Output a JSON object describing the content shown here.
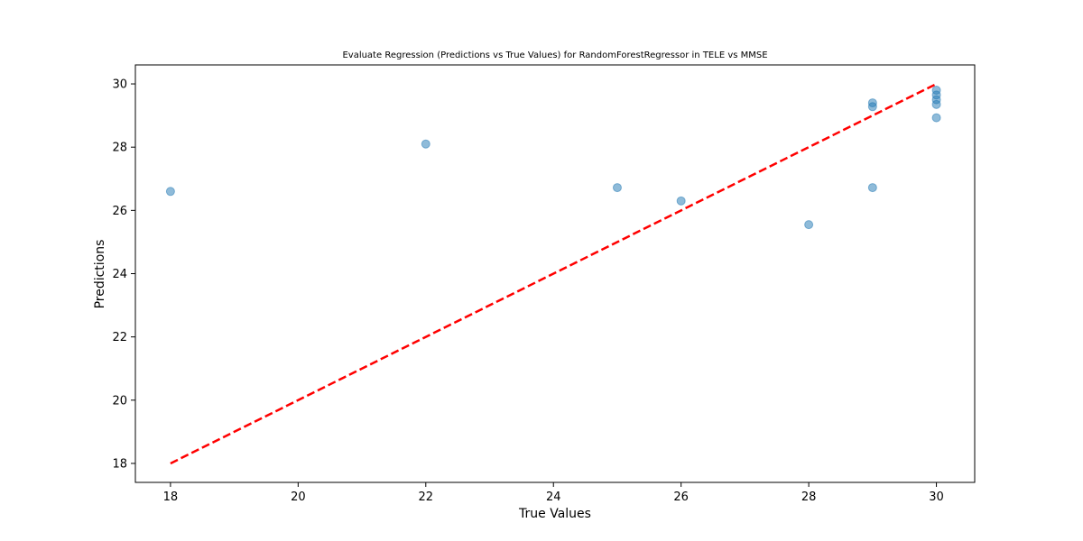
{
  "chart_data": {
    "type": "scatter",
    "title": "Evaluate Regression (Predictions vs True Values) for RandomForestRegressor in TELE vs MMSE",
    "xlabel": "True Values",
    "ylabel": "Predictions",
    "xlim": [
      17.45,
      30.6
    ],
    "ylim": [
      17.4,
      30.6
    ],
    "xticks": [
      18,
      20,
      22,
      24,
      26,
      28,
      30
    ],
    "yticks": [
      18,
      20,
      22,
      24,
      26,
      28,
      30
    ],
    "grid": false,
    "legend": "none",
    "point_color": "#1f77b4",
    "line_color": "#ff0000",
    "points": [
      {
        "x": 18,
        "y": 26.6
      },
      {
        "x": 22,
        "y": 28.1
      },
      {
        "x": 25,
        "y": 26.72
      },
      {
        "x": 26,
        "y": 26.3
      },
      {
        "x": 28,
        "y": 25.55
      },
      {
        "x": 29,
        "y": 29.4
      },
      {
        "x": 29,
        "y": 29.28
      },
      {
        "x": 29,
        "y": 26.72
      },
      {
        "x": 30,
        "y": 29.8
      },
      {
        "x": 30,
        "y": 29.65
      },
      {
        "x": 30,
        "y": 29.5
      },
      {
        "x": 30,
        "y": 29.35
      },
      {
        "x": 30,
        "y": 28.93
      }
    ],
    "reference_line": {
      "style": "dashed",
      "from": {
        "x": 18,
        "y": 18
      },
      "to": {
        "x": 30,
        "y": 30
      }
    }
  }
}
